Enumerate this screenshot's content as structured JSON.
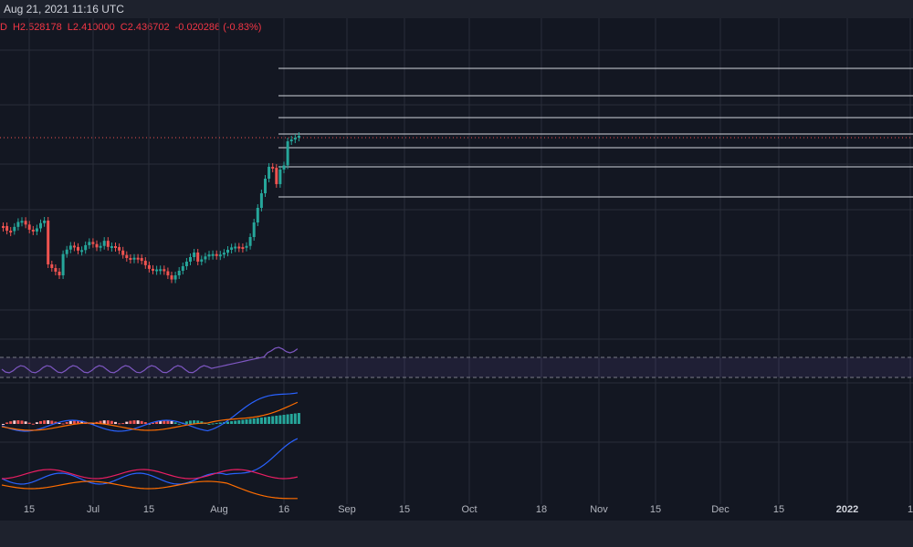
{
  "header": {
    "timestamp": "Aug 21, 2021 11:16 UTC"
  },
  "ohlc": {
    "prefix": "D",
    "high": "H2.528178",
    "low": "L2.410000",
    "close": "C2.436702",
    "change": "-0.020286 (-0.83%)"
  },
  "xaxis": {
    "labels": [
      {
        "text": "15",
        "bold": false
      },
      {
        "text": "Jul",
        "bold": false
      },
      {
        "text": "15",
        "bold": false
      },
      {
        "text": "Aug",
        "bold": false
      },
      {
        "text": "16",
        "bold": false
      },
      {
        "text": "Sep",
        "bold": false
      },
      {
        "text": "15",
        "bold": false
      },
      {
        "text": "Oct",
        "bold": false
      },
      {
        "text": "18",
        "bold": false
      },
      {
        "text": "Nov",
        "bold": false
      },
      {
        "text": "15",
        "bold": false
      },
      {
        "text": "Dec",
        "bold": false
      },
      {
        "text": "15",
        "bold": false
      },
      {
        "text": "2022",
        "bold": true
      },
      {
        "text": "1",
        "bold": false
      }
    ]
  },
  "colors": {
    "background": "#131722",
    "up": "#26a69a",
    "down": "#ef5350",
    "grid": "#2a2e39",
    "rsi": "#7e57c2",
    "macd": "#2962ff",
    "signal": "#ff6d00",
    "white_line": "#d1d4dc"
  }
}
